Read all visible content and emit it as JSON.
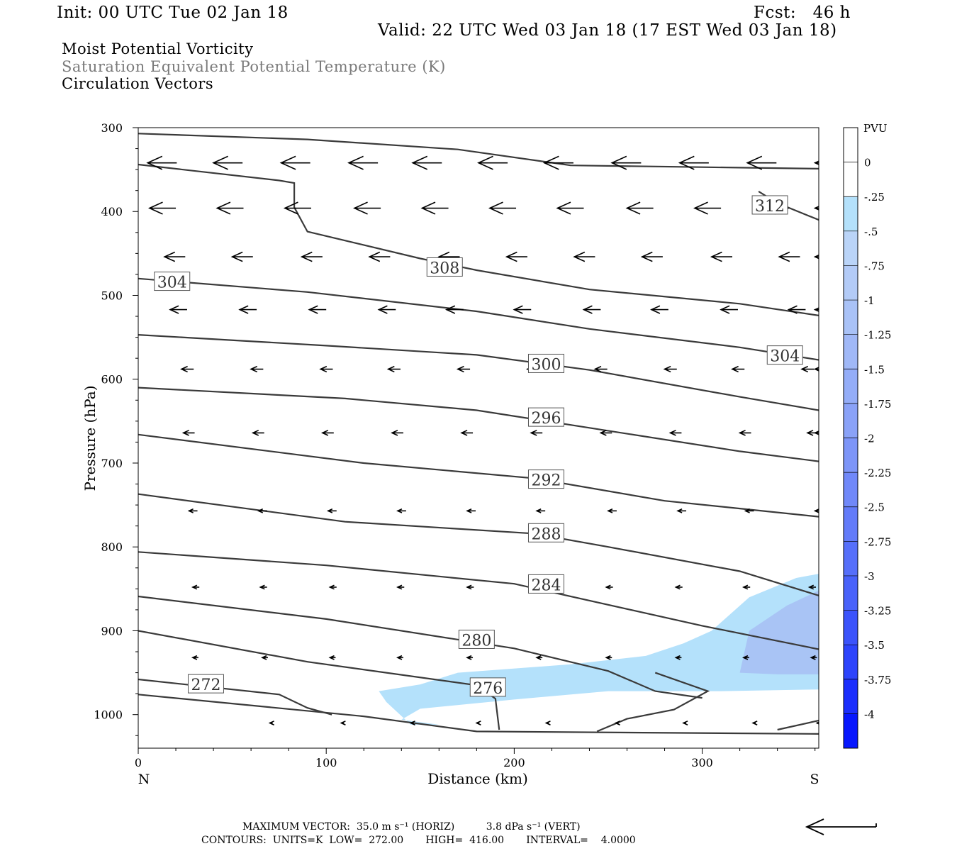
{
  "header": {
    "init": "Init: 00 UTC Tue 02 Jan 18",
    "fcst": "Fcst:   46 h",
    "valid": "Valid: 22 UTC Wed 03 Jan 18 (17 EST Wed 03 Jan 18)",
    "line1": "Moist Potential Vorticity",
    "line2": "Saturation Equivalent Potential Temperature (K)",
    "line3": "Circulation Vectors"
  },
  "footer": {
    "max_vector": "MAXIMUM VECTOR:  35.0 m s⁻¹ (HORIZ)          3.8 dPa s⁻¹ (VERT)",
    "contours": "CONTOURS:  UNITS=K  LOW=  272.00       HIGH=  416.00       INTERVAL=    4.0000"
  },
  "colors": {
    "contour": "#3a3a3a",
    "fill_light": "#b4e1fb",
    "fill_mid": "#a9c4f5"
  },
  "chart_data": {
    "type": "contour",
    "xlabel": "Distance (km)",
    "ylabel": "Pressure (hPa)",
    "x_ticks": [
      0,
      100,
      200,
      300
    ],
    "y_ticks": [
      300,
      400,
      500,
      600,
      700,
      800,
      900,
      1000
    ],
    "xlim": [
      0,
      362
    ],
    "ylim": [
      1040,
      300
    ],
    "x_end_labels": {
      "left": "N",
      "right": "S"
    },
    "contour_labels": [
      {
        "text": "312",
        "x": 336,
        "p": 393
      },
      {
        "text": "308",
        "x": 163,
        "p": 467
      },
      {
        "text": "304",
        "x": 18,
        "p": 484
      },
      {
        "text": "304",
        "x": 344,
        "p": 572
      },
      {
        "text": "300",
        "x": 217,
        "p": 582
      },
      {
        "text": "296",
        "x": 217,
        "p": 646
      },
      {
        "text": "292",
        "x": 217,
        "p": 720
      },
      {
        "text": "288",
        "x": 217,
        "p": 784
      },
      {
        "text": "284",
        "x": 217,
        "p": 845
      },
      {
        "text": "280",
        "x": 180,
        "p": 911
      },
      {
        "text": "276",
        "x": 186,
        "p": 968
      },
      {
        "text": "272",
        "x": 36,
        "p": 964
      }
    ],
    "contours": [
      [
        [
          0,
          307
        ],
        [
          90,
          314
        ],
        [
          170,
          326
        ],
        [
          230,
          345
        ],
        [
          362,
          349
        ]
      ],
      [
        [
          0,
          344
        ],
        [
          75,
          363
        ],
        [
          83,
          366
        ],
        [
          83,
          395
        ],
        [
          90,
          424
        ],
        [
          150,
          456
        ],
        [
          180,
          470
        ],
        [
          240,
          493
        ],
        [
          320,
          510
        ],
        [
          362,
          524
        ]
      ],
      [
        [
          0,
          480
        ],
        [
          90,
          496
        ],
        [
          180,
          519
        ],
        [
          240,
          540
        ],
        [
          320,
          562
        ],
        [
          362,
          577
        ]
      ],
      [
        [
          0,
          547
        ],
        [
          100,
          560
        ],
        [
          180,
          571
        ],
        [
          240,
          589
        ],
        [
          320,
          621
        ],
        [
          362,
          637
        ]
      ],
      [
        [
          0,
          610
        ],
        [
          110,
          623
        ],
        [
          180,
          637
        ],
        [
          240,
          658
        ],
        [
          320,
          686
        ],
        [
          362,
          698
        ]
      ],
      [
        [
          0,
          666
        ],
        [
          120,
          700
        ],
        [
          210,
          718
        ],
        [
          280,
          745
        ],
        [
          362,
          764
        ]
      ],
      [
        [
          0,
          737
        ],
        [
          110,
          770
        ],
        [
          210,
          784
        ],
        [
          250,
          800
        ],
        [
          320,
          829
        ],
        [
          362,
          858
        ]
      ],
      [
        [
          0,
          806
        ],
        [
          100,
          822
        ],
        [
          200,
          844
        ],
        [
          300,
          894
        ],
        [
          362,
          922
        ]
      ],
      [
        [
          0,
          859
        ],
        [
          100,
          886
        ],
        [
          200,
          921
        ],
        [
          250,
          948
        ],
        [
          275,
          972
        ],
        [
          300,
          980
        ]
      ],
      [
        [
          0,
          900
        ],
        [
          90,
          937
        ],
        [
          180,
          965
        ],
        [
          190,
          981
        ],
        [
          192,
          1018
        ]
      ],
      [
        [
          0,
          958
        ],
        [
          75,
          976
        ],
        [
          90,
          992
        ],
        [
          103,
          1000
        ]
      ],
      [
        [
          0,
          976
        ],
        [
          120,
          1002
        ],
        [
          180,
          1020
        ],
        [
          362,
          1023
        ]
      ],
      [
        [
          244,
          1020
        ],
        [
          260,
          1005
        ],
        [
          285,
          994
        ],
        [
          303,
          972
        ],
        [
          275,
          950
        ]
      ],
      [
        [
          340,
          1018
        ],
        [
          362,
          1007
        ]
      ],
      [
        [
          330,
          376
        ],
        [
          340,
          390
        ],
        [
          362,
          410
        ]
      ]
    ],
    "fill_regions": [
      {
        "level": "-0.25 to -0.5",
        "points": [
          [
            128,
            972
          ],
          [
            150,
            964
          ],
          [
            170,
            950
          ],
          [
            230,
            940
          ],
          [
            270,
            930
          ],
          [
            290,
            915
          ],
          [
            305,
            900
          ],
          [
            325,
            860
          ],
          [
            350,
            837
          ],
          [
            362,
            832
          ],
          [
            362,
            970
          ],
          [
            310,
            972
          ],
          [
            250,
            972
          ],
          [
            200,
            982
          ],
          [
            150,
            993
          ],
          [
            140,
            1006
          ],
          [
            160,
            1012
          ],
          [
            145,
            1012
          ],
          [
            132,
            985
          ]
        ]
      },
      {
        "level": "-0.5 to -0.75",
        "points": [
          [
            320,
            950
          ],
          [
            325,
            900
          ],
          [
            345,
            870
          ],
          [
            362,
            852
          ],
          [
            362,
            952
          ],
          [
            340,
            952
          ]
        ]
      }
    ],
    "vector_rows": [
      {
        "p": 342,
        "x": [
          5,
          40,
          76,
          112,
          146,
          181,
          216,
          252,
          288,
          324,
          360
        ],
        "len": 31
      },
      {
        "p": 396,
        "x": [
          6,
          42,
          78,
          115,
          151,
          187,
          223,
          260,
          296,
          332,
          360
        ],
        "len": 28
      },
      {
        "p": 454,
        "x": [
          14,
          50,
          87,
          123,
          160,
          196,
          232,
          268,
          305,
          341,
          360
        ],
        "len": 22
      },
      {
        "p": 517,
        "x": [
          17,
          54,
          91,
          128,
          164,
          200,
          237,
          273,
          310,
          346,
          360
        ],
        "len": 18
      },
      {
        "p": 588,
        "x": [
          23,
          60,
          97,
          133,
          170,
          207,
          243,
          280,
          316,
          353,
          360
        ],
        "len": 13
      },
      {
        "p": 664,
        "x": [
          24,
          61,
          98,
          135,
          172,
          209,
          246,
          283,
          320,
          356,
          360
        ],
        "len": 12
      },
      {
        "p": 757,
        "x": [
          27,
          64,
          101,
          138,
          175,
          212,
          250,
          287,
          323,
          360
        ],
        "len": 9
      },
      {
        "p": 848,
        "x": [
          29,
          65,
          102,
          138,
          175,
          212,
          249,
          286,
          322,
          357
        ],
        "len": 7
      },
      {
        "p": 932,
        "x": [
          29,
          66,
          102,
          138,
          175,
          212,
          249,
          286,
          322,
          358
        ],
        "len": 6
      },
      {
        "p": 1010,
        "x": [
          70,
          108,
          145,
          180,
          217,
          254,
          290,
          327,
          361
        ],
        "len": 3
      }
    ],
    "colorbar": {
      "unit": "PVU",
      "labels": [
        "0",
        "-.25",
        "-.5",
        "-.75",
        "-1",
        "-1.25",
        "-1.5",
        "-1.75",
        "-2",
        "-2.25",
        "-2.5",
        "-2.75",
        "-3",
        "-3.25",
        "-3.5",
        "-3.75",
        "-4"
      ],
      "colors": [
        "#ffffff",
        "#ffffff",
        "#b4e1fb",
        "#bad4f8",
        "#b3cbf7",
        "#a9c2f7",
        "#a0b8f7",
        "#94adf8",
        "#8aa2f8",
        "#7d95f8",
        "#7088f9",
        "#637bf9",
        "#566ffa",
        "#4962fa",
        "#3b53fb",
        "#2d44fc",
        "#1b2efd",
        "#0717fe"
      ]
    },
    "max_vector_arrow": "leftward"
  }
}
